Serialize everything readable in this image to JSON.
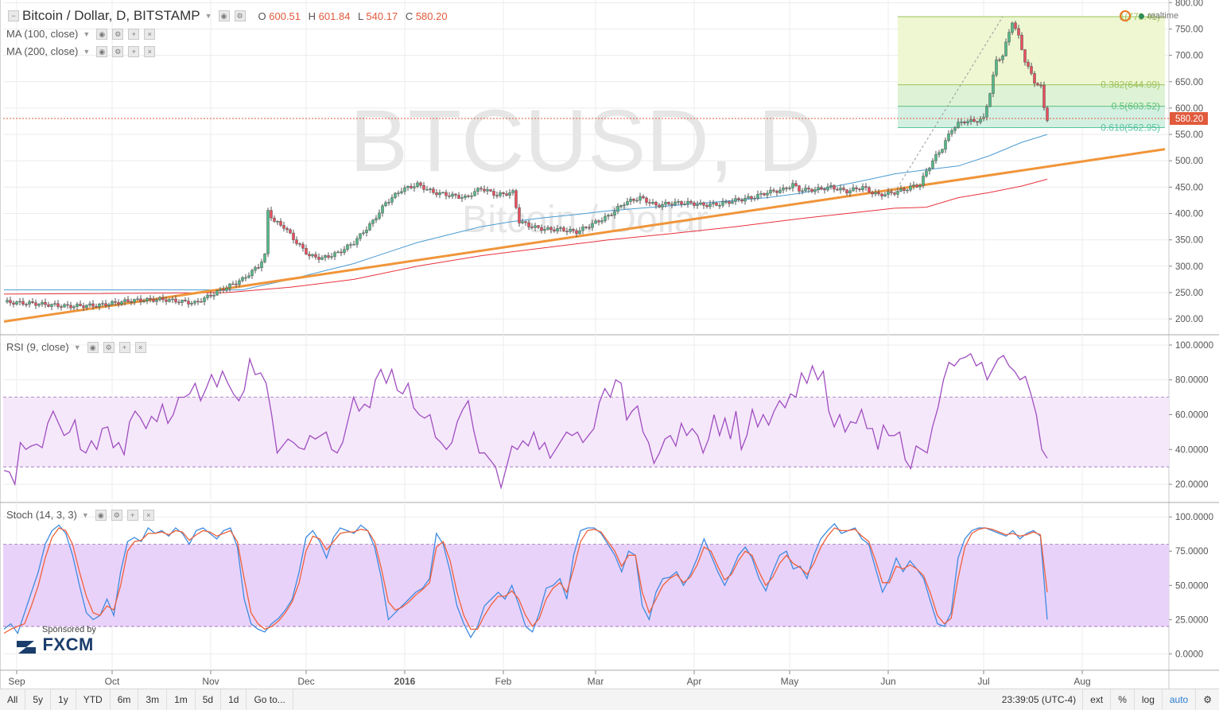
{
  "header": {
    "symbol": "Bitcoin / Dollar, D, BITSTAMP",
    "ohlc": [
      {
        "k": "O",
        "v": "600.51"
      },
      {
        "k": "H",
        "v": "601.84"
      },
      {
        "k": "L",
        "v": "540.17"
      },
      {
        "k": "C",
        "v": "580.20"
      }
    ],
    "ma100": "MA (100, close)",
    "ma200": "MA (200, close)",
    "realtime": "realtime"
  },
  "watermark": {
    "line1": "BTCUSD, D",
    "line2": "Bitcoin / Dollar"
  },
  "colors": {
    "up": "#53b987",
    "down": "#eb4d5c",
    "ma100": "#4a9bd1",
    "ma200": "#e8323c",
    "trend": "#f0953a",
    "rsi": "#a04ec0",
    "stoch_k": "#3d8be0",
    "stoch_d": "#f0603a",
    "price_tag": "#e15a3c"
  },
  "chart_data": [
    {
      "type": "candlestick",
      "title": "Bitcoin / Dollar, D, BITSTAMP",
      "ylim": [
        170,
        805
      ],
      "y_ticks": [
        "800.00",
        "750.00",
        "700.00",
        "650.00",
        "600.00",
        "550.00",
        "500.00",
        "450.00",
        "400.00",
        "350.00",
        "300.00",
        "250.00",
        "200.00"
      ],
      "x_ticks": [
        "Sep",
        "Oct",
        "Nov",
        "Dec",
        "2016",
        "Feb",
        "Mar",
        "Apr",
        "May",
        "Jun",
        "Jul",
        "Aug"
      ],
      "last_price_label": "580.20",
      "close_path": [
        [
          0,
          232
        ],
        [
          10,
          229
        ],
        [
          20,
          224
        ],
        [
          30,
          226
        ],
        [
          40,
          235
        ],
        [
          50,
          237
        ],
        [
          60,
          230
        ],
        [
          65,
          245
        ],
        [
          70,
          260
        ],
        [
          75,
          275
        ],
        [
          80,
          300
        ],
        [
          82,
          320
        ],
        [
          83,
          405
        ],
        [
          85,
          385
        ],
        [
          88,
          375
        ],
        [
          92,
          345
        ],
        [
          96,
          320
        ],
        [
          100,
          315
        ],
        [
          105,
          325
        ],
        [
          110,
          345
        ],
        [
          116,
          385
        ],
        [
          120,
          420
        ],
        [
          125,
          445
        ],
        [
          130,
          455
        ],
        [
          135,
          440
        ],
        [
          140,
          435
        ],
        [
          145,
          430
        ],
        [
          150,
          448
        ],
        [
          155,
          435
        ],
        [
          160,
          440
        ],
        [
          162,
          385
        ],
        [
          166,
          375
        ],
        [
          170,
          370
        ],
        [
          175,
          370
        ],
        [
          180,
          365
        ],
        [
          185,
          380
        ],
        [
          190,
          395
        ],
        [
          195,
          420
        ],
        [
          200,
          430
        ],
        [
          205,
          415
        ],
        [
          210,
          420
        ],
        [
          215,
          420
        ],
        [
          220,
          416
        ],
        [
          225,
          418
        ],
        [
          230,
          425
        ],
        [
          235,
          430
        ],
        [
          240,
          440
        ],
        [
          245,
          445
        ],
        [
          248,
          455
        ],
        [
          250,
          445
        ],
        [
          255,
          445
        ],
        [
          260,
          450
        ],
        [
          265,
          442
        ],
        [
          270,
          450
        ],
        [
          272,
          442
        ],
        [
          275,
          435
        ],
        [
          280,
          440
        ],
        [
          283,
          445
        ],
        [
          285,
          450
        ],
        [
          288,
          455
        ],
        [
          290,
          480
        ],
        [
          292,
          500
        ],
        [
          295,
          525
        ],
        [
          298,
          560
        ],
        [
          300,
          570
        ],
        [
          302,
          575
        ],
        [
          305,
          575
        ],
        [
          308,
          580
        ],
        [
          310,
          630
        ],
        [
          312,
          690
        ],
        [
          314,
          700
        ],
        [
          317,
          765
        ],
        [
          319,
          735
        ],
        [
          321,
          690
        ],
        [
          324,
          650
        ],
        [
          326,
          640
        ],
        [
          327,
          600
        ],
        [
          328,
          580
        ]
      ],
      "volatility": 6,
      "ma100_path": [
        [
          0,
          255
        ],
        [
          75,
          255
        ],
        [
          80,
          262
        ],
        [
          90,
          275
        ],
        [
          100,
          290
        ],
        [
          110,
          305
        ],
        [
          120,
          325
        ],
        [
          130,
          345
        ],
        [
          140,
          360
        ],
        [
          150,
          375
        ],
        [
          160,
          385
        ],
        [
          170,
          392
        ],
        [
          180,
          398
        ],
        [
          190,
          405
        ],
        [
          200,
          410
        ],
        [
          210,
          415
        ],
        [
          220,
          420
        ],
        [
          230,
          425
        ],
        [
          240,
          430
        ],
        [
          250,
          438
        ],
        [
          260,
          450
        ],
        [
          270,
          462
        ],
        [
          280,
          475
        ],
        [
          290,
          483
        ],
        [
          300,
          490
        ],
        [
          310,
          510
        ],
        [
          320,
          535
        ],
        [
          328,
          550
        ]
      ],
      "ma200_path": [
        [
          0,
          247
        ],
        [
          70,
          250
        ],
        [
          90,
          260
        ],
        [
          110,
          275
        ],
        [
          130,
          300
        ],
        [
          150,
          320
        ],
        [
          170,
          335
        ],
        [
          190,
          350
        ],
        [
          210,
          362
        ],
        [
          230,
          375
        ],
        [
          250,
          390
        ],
        [
          265,
          400
        ],
        [
          280,
          410
        ],
        [
          290,
          412
        ],
        [
          300,
          430
        ],
        [
          310,
          440
        ],
        [
          320,
          452
        ],
        [
          328,
          465
        ]
      ],
      "trendline": {
        "from": [
          0,
          195
        ],
        "to": [
          365,
          522
        ]
      },
      "fibonacci": {
        "levels": [
          {
            "label": "1(773.41)",
            "value": 773.41
          },
          {
            "label": "0.382(644.09)",
            "value": 644.09
          },
          {
            "label": "0.5(603.52)",
            "value": 603.52
          },
          {
            "label": "0.618(562.95)",
            "value": 562.95
          }
        ],
        "from_day": 281,
        "to_day": 365,
        "swing_low": 440
      }
    },
    {
      "type": "line",
      "title": "RSI (9, close)",
      "ylim": [
        10,
        105
      ],
      "y_ticks": [
        "100.0000",
        "80.0000",
        "60.0000",
        "40.0000",
        "20.0000"
      ],
      "band": [
        30,
        70
      ],
      "series": [
        {
          "name": "RSI",
          "values": [
            28,
            27,
            20,
            44,
            40,
            42,
            43,
            41,
            55,
            62,
            55,
            48,
            50,
            57,
            40,
            38,
            45,
            40,
            52,
            53,
            41,
            44,
            37,
            56,
            62,
            58,
            52,
            59,
            56,
            66,
            55,
            60,
            70,
            70,
            72,
            78,
            68,
            75,
            83,
            76,
            85,
            78,
            72,
            68,
            74,
            92,
            83,
            84,
            78,
            60,
            38,
            42,
            46,
            44,
            41,
            40,
            48,
            46,
            48,
            50,
            40,
            38,
            44,
            57,
            70,
            62,
            66,
            64,
            80,
            86,
            78,
            86,
            74,
            72,
            78,
            64,
            60,
            58,
            60,
            47,
            44,
            40,
            44,
            56,
            63,
            68,
            51,
            38,
            38,
            34,
            30,
            18,
            30,
            42,
            40,
            45,
            42,
            50,
            40,
            44,
            35,
            40,
            45,
            50,
            48,
            50,
            44,
            48,
            52,
            67,
            75,
            70,
            80,
            78,
            57,
            62,
            65,
            50,
            44,
            32,
            38,
            46,
            48,
            42,
            55,
            48,
            52,
            48,
            38,
            46,
            60,
            48,
            58,
            46,
            62,
            40,
            48,
            63,
            53,
            60,
            54,
            62,
            68,
            64,
            72,
            70,
            84,
            78,
            88,
            80,
            85,
            62,
            53,
            60,
            50,
            56,
            55,
            63,
            52,
            52,
            40,
            54,
            48,
            48,
            50,
            34,
            29,
            42,
            40,
            38,
            53,
            64,
            80,
            90,
            88,
            92,
            93,
            95,
            88,
            90,
            80,
            86,
            92,
            94,
            88,
            85,
            80,
            82,
            72,
            60,
            40,
            35
          ]
        }
      ]
    },
    {
      "type": "line",
      "title": "Stoch (14, 3, 3)",
      "ylim": [
        -12,
        110
      ],
      "y_ticks": [
        "100.0000",
        "75.0000",
        "50.0000",
        "25.0000",
        "0.0000"
      ],
      "band": [
        20,
        80
      ],
      "series": [
        {
          "name": "%K",
          "values": [
            18,
            22,
            15,
            30,
            45,
            60,
            80,
            90,
            94,
            88,
            72,
            50,
            30,
            25,
            28,
            40,
            28,
            60,
            82,
            85,
            82,
            92,
            88,
            90,
            86,
            92,
            88,
            80,
            90,
            92,
            88,
            84,
            90,
            92,
            78,
            40,
            22,
            18,
            16,
            22,
            26,
            32,
            40,
            60,
            85,
            90,
            82,
            70,
            85,
            92,
            90,
            88,
            94,
            90,
            78,
            55,
            25,
            30,
            35,
            40,
            45,
            48,
            55,
            88,
            80,
            60,
            35,
            22,
            12,
            20,
            35,
            40,
            45,
            40,
            50,
            36,
            20,
            16,
            30,
            48,
            50,
            55,
            40,
            72,
            90,
            92,
            92,
            88,
            80,
            72,
            60,
            75,
            72,
            35,
            25,
            45,
            55,
            56,
            60,
            50,
            58,
            70,
            84,
            72,
            60,
            50,
            60,
            72,
            78,
            70,
            55,
            46,
            60,
            72,
            75,
            62,
            64,
            55,
            72,
            84,
            90,
            95,
            88,
            90,
            92,
            84,
            80,
            62,
            45,
            55,
            70,
            60,
            68,
            62,
            55,
            38,
            22,
            20,
            30,
            70,
            84,
            90,
            92,
            92,
            90,
            88,
            86,
            90,
            84,
            88,
            90,
            86,
            25
          ]
        },
        {
          "name": "%D",
          "values": [
            15,
            18,
            20,
            22,
            35,
            50,
            70,
            85,
            92,
            90,
            80,
            60,
            42,
            30,
            28,
            35,
            32,
            50,
            75,
            82,
            83,
            88,
            88,
            89,
            87,
            90,
            89,
            83,
            87,
            90,
            89,
            86,
            88,
            90,
            82,
            55,
            30,
            22,
            18,
            20,
            24,
            30,
            38,
            52,
            75,
            86,
            84,
            76,
            82,
            88,
            89,
            89,
            91,
            90,
            82,
            62,
            38,
            32,
            34,
            38,
            43,
            47,
            52,
            78,
            82,
            68,
            45,
            28,
            18,
            18,
            28,
            36,
            42,
            42,
            46,
            40,
            28,
            20,
            26,
            40,
            48,
            52,
            45,
            62,
            82,
            90,
            91,
            89,
            82,
            75,
            64,
            72,
            72,
            45,
            30,
            40,
            50,
            55,
            58,
            52,
            56,
            65,
            78,
            75,
            64,
            54,
            58,
            68,
            75,
            72,
            60,
            50,
            56,
            66,
            72,
            66,
            63,
            58,
            66,
            78,
            86,
            92,
            90,
            90,
            91,
            86,
            82,
            68,
            52,
            52,
            64,
            62,
            65,
            62,
            57,
            44,
            28,
            22,
            26,
            55,
            78,
            88,
            91,
            92,
            91,
            89,
            87,
            88,
            86,
            87,
            89,
            87,
            45
          ]
        }
      ]
    }
  ],
  "sponsor": {
    "label": "Sponsored by",
    "brand": "FXCM"
  },
  "toolbar": {
    "ranges": [
      "All",
      "5y",
      "1y",
      "YTD",
      "6m",
      "3m",
      "1m",
      "5d",
      "1d",
      "Go to..."
    ],
    "time": "23:39:05 (UTC-4)",
    "right": [
      "ext",
      "%",
      "log",
      "auto"
    ]
  }
}
